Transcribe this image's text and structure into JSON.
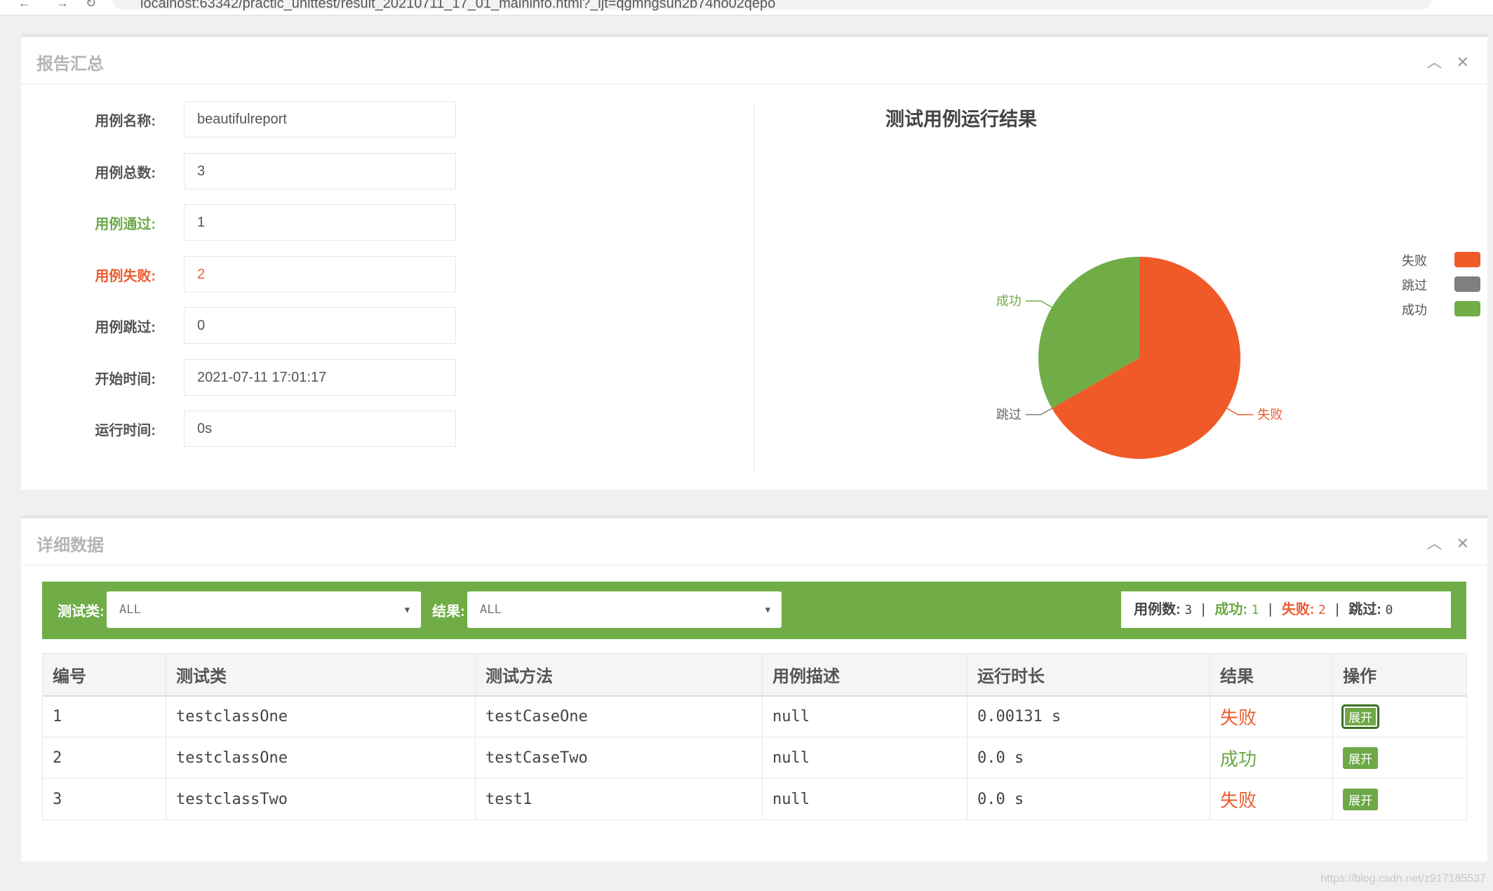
{
  "browser": {
    "url": "localhost:63342/practic_unittest/result_20210711_17_01_maininfo.html?_ijt=qgmngsuh2b74ho02qepo"
  },
  "summary": {
    "title": "报告汇总",
    "fields": [
      {
        "label": "用例名称:",
        "value": "beautifulreport"
      },
      {
        "label": "用例总数:",
        "value": "3"
      },
      {
        "label": "用例通过:",
        "value": "1"
      },
      {
        "label": "用例失败:",
        "value": "2"
      },
      {
        "label": "用例跳过:",
        "value": "0"
      },
      {
        "label": "开始时间:",
        "value": "2021-07-11 17:01:17"
      },
      {
        "label": "运行时间:",
        "value": "0s"
      }
    ]
  },
  "chart_data": {
    "type": "pie",
    "title": "测试用例运行结果",
    "slices": [
      {
        "name": "失败",
        "value": 2,
        "color": "#f05a28"
      },
      {
        "name": "跳过",
        "value": 0,
        "color": "#7f7f7f"
      },
      {
        "name": "成功",
        "value": 1,
        "color": "#70ad47"
      }
    ],
    "legend_position": "right"
  },
  "details": {
    "title": "详细数据",
    "filter_class_label": "测试类:",
    "filter_class_value": "ALL",
    "filter_result_label": "结果:",
    "filter_result_value": "ALL",
    "stats": {
      "total_label": "用例数:",
      "total": "3",
      "pass_label": "成功:",
      "pass": "1",
      "fail_label": "失败:",
      "fail": "2",
      "skip_label": "跳过:",
      "skip": "0"
    },
    "columns": [
      "编号",
      "测试类",
      "测试方法",
      "用例描述",
      "运行时长",
      "结果",
      "操作"
    ],
    "rows": [
      {
        "id": "1",
        "class": "testclassOne",
        "method": "testCaseOne",
        "desc": "null",
        "duration": "0.00131 s",
        "result": "失败",
        "action": "展开"
      },
      {
        "id": "2",
        "class": "testclassOne",
        "method": "testCaseTwo",
        "desc": "null",
        "duration": "0.0 s",
        "result": "成功",
        "action": "展开"
      },
      {
        "id": "3",
        "class": "testclassTwo",
        "method": "test1",
        "desc": "null",
        "duration": "0.0 s",
        "result": "失败",
        "action": "展开"
      }
    ]
  },
  "watermark": "https://blog.csdn.net/z917185537",
  "colors": {
    "pass": "#6da947",
    "fail": "#ed5b30",
    "skip": "#7f7f7f",
    "bar": "#70ad47"
  }
}
